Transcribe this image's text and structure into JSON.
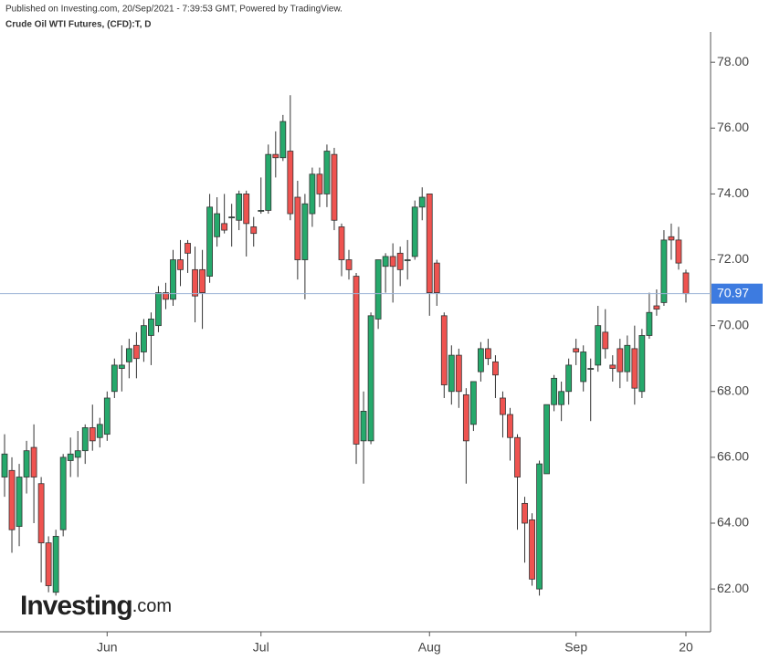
{
  "chart_data": {
    "type": "candlestick",
    "subtitle": "Published on Investing.com, 20/Sep/2021 - 7:39:53 GMT, Powered by TradingView.",
    "title": "Crude Oil WTI Futures, (CFD):T, D",
    "logo_text": "Investing",
    "logo_suffix": ".com",
    "categories": [
      null,
      null,
      null,
      null,
      null,
      null,
      null,
      null,
      null,
      null,
      null,
      null,
      null,
      null,
      "Jun",
      null,
      null,
      null,
      null,
      null,
      null,
      null,
      null,
      null,
      null,
      null,
      null,
      null,
      null,
      null,
      null,
      null,
      null,
      null,
      null,
      "Jul",
      null,
      null,
      null,
      null,
      null,
      null,
      null,
      null,
      null,
      null,
      null,
      null,
      null,
      null,
      null,
      null,
      null,
      null,
      null,
      null,
      null,
      null,
      "Aug",
      null,
      null,
      null,
      null,
      null,
      null,
      null,
      null,
      null,
      null,
      null,
      null,
      null,
      null,
      null,
      null,
      null,
      null,
      null,
      "Sep",
      null,
      null,
      null,
      null,
      null,
      null,
      null,
      null,
      null,
      null,
      null,
      null,
      null,
      null,
      "20"
    ],
    "open": [
      65.4,
      65.6,
      63.9,
      65.4,
      66.3,
      65.2,
      63.4,
      61.9,
      63.8,
      65.9,
      66.0,
      66.2,
      66.9,
      66.6,
      66.7,
      68.0,
      68.7,
      68.9,
      69.4,
      69.2,
      69.7,
      70.0,
      71.0,
      70.8,
      72.0,
      72.5,
      71.7,
      71.7,
      71.5,
      72.7,
      73.1,
      73.3,
      73.2,
      74.0,
      73.0,
      73.5,
      73.5,
      75.2,
      75.1,
      75.3,
      73.9,
      72.0,
      73.4,
      74.6,
      74.0,
      75.2,
      73.0,
      72.0,
      71.5,
      66.5,
      66.5,
      70.2,
      71.8,
      72.1,
      72.2,
      72.0,
      72.1,
      73.6,
      74.0,
      71.9,
      70.3,
      68.0,
      69.1,
      67.9,
      67.0,
      68.6,
      69.3,
      68.9,
      67.8,
      67.3,
      66.6,
      64.6,
      64.1,
      62.0,
      65.5,
      67.6,
      67.6,
      68.0,
      69.3,
      68.3,
      68.7,
      68.8,
      69.8,
      68.8,
      69.3,
      68.6,
      69.3,
      68.0,
      69.7,
      70.6,
      70.7,
      72.7,
      72.6,
      71.6
    ],
    "high": [
      66.7,
      66.0,
      65.8,
      66.5,
      67.0,
      65.4,
      63.6,
      63.8,
      66.1,
      66.6,
      66.8,
      67.0,
      67.6,
      67.2,
      68.0,
      69.0,
      69.4,
      69.6,
      69.8,
      70.2,
      70.4,
      71.2,
      71.3,
      72.3,
      72.6,
      72.6,
      72.4,
      72.3,
      74.0,
      73.9,
      74.0,
      73.7,
      74.1,
      74.1,
      73.3,
      74.5,
      75.5,
      75.9,
      76.4,
      77.0,
      74.4,
      74.0,
      74.8,
      74.8,
      75.5,
      75.4,
      73.1,
      72.3,
      71.6,
      68.0,
      70.4,
      72.0,
      72.2,
      72.5,
      72.4,
      72.6,
      73.8,
      74.2,
      74.0,
      72.0,
      70.4,
      69.4,
      69.3,
      68.1,
      68.3,
      69.5,
      69.6,
      69.1,
      68.0,
      67.5,
      66.7,
      64.8,
      64.3,
      65.9,
      67.6,
      68.5,
      68.3,
      69.0,
      69.6,
      69.4,
      69.0,
      70.6,
      70.5,
      69.1,
      69.6,
      69.7,
      70.0,
      69.9,
      71.0,
      71.1,
      72.9,
      73.1,
      73.0,
      71.7
    ],
    "low": [
      64.8,
      63.1,
      63.3,
      64.9,
      64.0,
      62.2,
      61.9,
      61.8,
      63.6,
      65.4,
      65.4,
      65.8,
      66.2,
      66.3,
      66.5,
      67.8,
      68.0,
      68.4,
      68.4,
      68.9,
      68.8,
      69.8,
      70.5,
      70.6,
      71.2,
      71.6,
      70.1,
      69.9,
      71.3,
      72.4,
      72.8,
      72.4,
      72.9,
      72.1,
      72.4,
      73.4,
      73.4,
      74.5,
      75.0,
      73.2,
      71.4,
      70.8,
      73.0,
      73.6,
      73.6,
      72.9,
      71.5,
      71.4,
      65.8,
      65.2,
      66.4,
      69.9,
      71.0,
      70.7,
      71.2,
      71.4,
      72.0,
      73.2,
      70.3,
      70.6,
      67.8,
      67.6,
      67.5,
      65.2,
      66.8,
      68.3,
      68.8,
      67.8,
      66.6,
      65.9,
      63.8,
      62.8,
      62.1,
      61.8,
      65.5,
      67.4,
      67.1,
      67.6,
      68.8,
      68.0,
      67.1,
      68.6,
      69.0,
      68.3,
      68.1,
      68.3,
      67.6,
      67.8,
      69.6,
      70.3,
      70.6,
      72.0,
      71.7,
      70.7
    ],
    "close": [
      66.1,
      63.8,
      65.4,
      66.2,
      65.4,
      63.4,
      62.1,
      63.6,
      66.0,
      66.1,
      66.2,
      66.9,
      66.5,
      67.0,
      67.8,
      68.8,
      68.8,
      69.3,
      69.0,
      70.0,
      70.2,
      71.0,
      70.8,
      72.0,
      71.7,
      72.2,
      70.9,
      71.0,
      73.6,
      73.4,
      72.9,
      73.3,
      74.0,
      73.1,
      72.8,
      73.5,
      75.2,
      75.1,
      76.2,
      73.4,
      72.0,
      73.7,
      74.6,
      74.0,
      75.3,
      73.2,
      72.0,
      71.7,
      66.4,
      67.4,
      70.3,
      72.0,
      72.1,
      71.8,
      71.7,
      72.0,
      73.6,
      73.9,
      71.0,
      71.0,
      68.2,
      69.1,
      68.0,
      66.5,
      68.3,
      69.3,
      69.0,
      68.5,
      67.3,
      66.6,
      65.4,
      64.0,
      62.3,
      65.8,
      67.6,
      68.4,
      68.0,
      68.8,
      69.2,
      69.2,
      68.7,
      70.0,
      69.3,
      68.7,
      68.6,
      69.4,
      68.1,
      69.7,
      70.4,
      70.5,
      72.6,
      72.6,
      71.9,
      70.97
    ],
    "up_color": "#26a96c",
    "down_color": "#ef5350",
    "last_price_color": "#3d7be0",
    "ylim": [
      60.7,
      78.92
    ],
    "yticks": [
      {
        "value": 62,
        "label": "62.00"
      },
      {
        "value": 64,
        "label": "64.00"
      },
      {
        "value": 66,
        "label": "66.00"
      },
      {
        "value": 68,
        "label": "68.00"
      },
      {
        "value": 70,
        "label": "70.00"
      },
      {
        "value": 72,
        "label": "72.00"
      },
      {
        "value": 74,
        "label": "74.00"
      },
      {
        "value": 76,
        "label": "76.00"
      },
      {
        "value": 78,
        "label": "78.00"
      }
    ],
    "grid": false
  }
}
